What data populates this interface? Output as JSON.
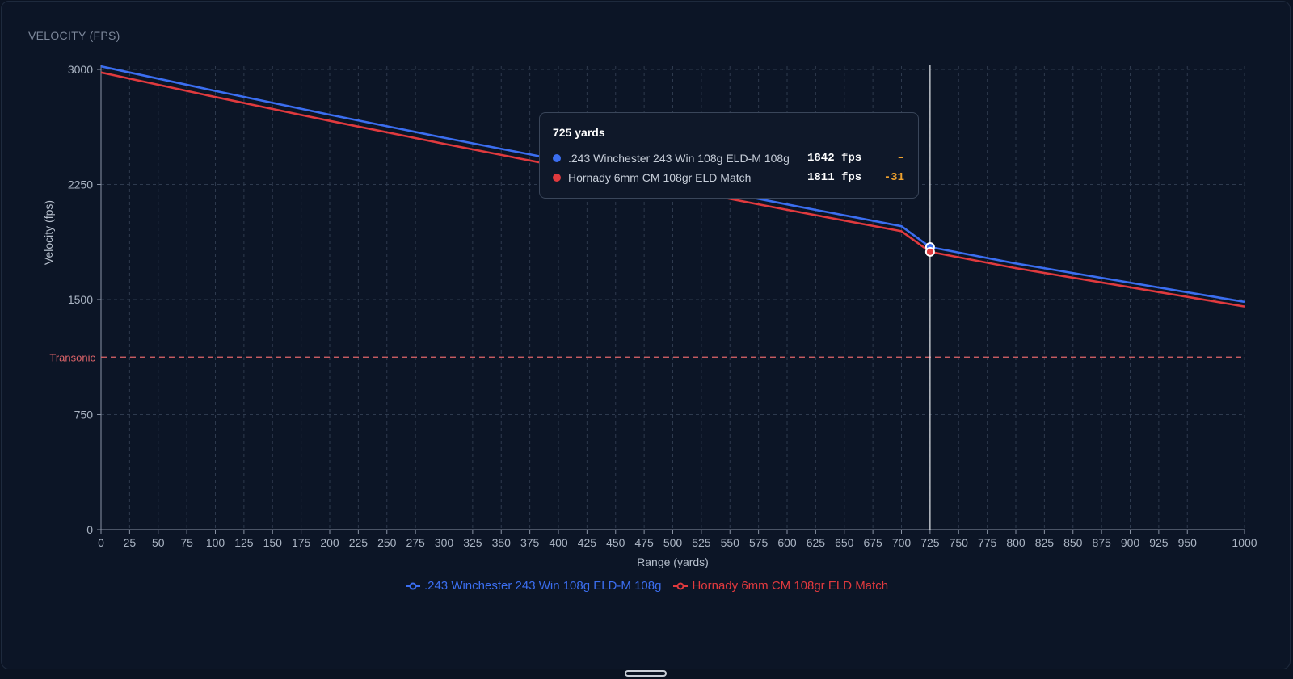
{
  "panel": {
    "title": "VELOCITY (FPS)"
  },
  "colors": {
    "background": "#0c1526",
    "grid": "#2e3a4e",
    "series1": "#3b6ef0",
    "series2": "#e03a3e",
    "transonic": "#e0656a",
    "diff": "#f0a22e"
  },
  "tooltip": {
    "title": "725 yards",
    "rows": [
      {
        "name": ".243 Winchester 243 Win 108g ELD-M 108g",
        "value": "1842 fps",
        "diff": "–",
        "color": "#3b6ef0"
      },
      {
        "name": "Hornady 6mm CM 108gr ELD Match",
        "value": "1811 fps",
        "diff": "-31",
        "color": "#e03a3e"
      }
    ]
  },
  "legend": [
    {
      "label": ".243 Winchester 243 Win 108g ELD-M 108g",
      "color": "#3b6ef0",
      "icon": "line-circle-icon"
    },
    {
      "label": "Hornady 6mm CM 108gr ELD Match",
      "color": "#e03a3e",
      "icon": "line-circle-icon"
    }
  ],
  "chart_data": {
    "type": "line",
    "title": "VELOCITY (FPS)",
    "xlabel": "Range (yards)",
    "ylabel": "Velocity (fps)",
    "xlim": [
      0,
      1000
    ],
    "ylim": [
      0,
      3000
    ],
    "x_ticks": [
      0,
      25,
      50,
      75,
      100,
      125,
      150,
      175,
      200,
      225,
      250,
      275,
      300,
      325,
      350,
      375,
      400,
      425,
      450,
      475,
      500,
      525,
      550,
      575,
      600,
      625,
      650,
      675,
      700,
      725,
      750,
      775,
      800,
      825,
      850,
      875,
      900,
      925,
      950,
      1000
    ],
    "y_ticks": [
      0,
      750,
      1500,
      2250,
      3000
    ],
    "grid": true,
    "series": [
      {
        "name": ".243 Winchester 243 Win 108g ELD-M 108g",
        "color": "#3b6ef0",
        "x": [
          0,
          100,
          200,
          300,
          400,
          500,
          600,
          700,
          725,
          800,
          900,
          1000
        ],
        "y": [
          3020,
          2860,
          2705,
          2555,
          2410,
          2265,
          2120,
          1978,
          1842,
          1735,
          1610,
          1485
        ]
      },
      {
        "name": "Hornady 6mm CM 108gr ELD Match",
        "color": "#e03a3e",
        "x": [
          0,
          100,
          200,
          300,
          400,
          500,
          600,
          700,
          725,
          800,
          900,
          1000
        ],
        "y": [
          2980,
          2820,
          2665,
          2515,
          2370,
          2228,
          2085,
          1945,
          1811,
          1705,
          1580,
          1455
        ]
      }
    ],
    "reference_lines": [
      {
        "label": "Transonic",
        "y": 1125,
        "style": "dashed",
        "color": "#e0656a"
      }
    ],
    "cursor": {
      "x": 725
    },
    "legend_position": "bottom-center"
  }
}
